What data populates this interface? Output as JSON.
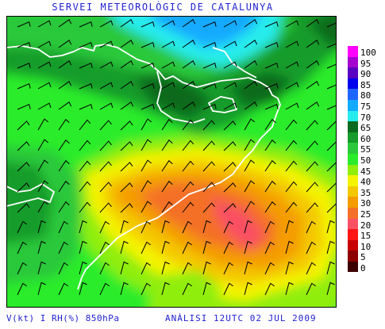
{
  "header": {
    "title": "SERVEI METEOROLÒGIC DE CATALUNYA"
  },
  "footer": {
    "variable": "V(kt) I RH(%) 850hPa",
    "analysis": "ANÀLISI 12UTC 02 JUL 2009"
  },
  "legend": {
    "items": [
      {
        "label": "100",
        "color": "#ff00ff"
      },
      {
        "label": "95",
        "color": "#a400d0"
      },
      {
        "label": "90",
        "color": "#5a00c0"
      },
      {
        "label": "85",
        "color": "#0000ee"
      },
      {
        "label": "80",
        "color": "#1e64ff"
      },
      {
        "label": "75",
        "color": "#12aaff"
      },
      {
        "label": "70",
        "color": "#28ecec"
      },
      {
        "label": "65",
        "color": "#0a6a1e"
      },
      {
        "label": "60",
        "color": "#159c2a"
      },
      {
        "label": "55",
        "color": "#2ac83a"
      },
      {
        "label": "50",
        "color": "#2aec2a"
      },
      {
        "label": "45",
        "color": "#90ee0a"
      },
      {
        "label": "40",
        "color": "#f4f400"
      },
      {
        "label": "35",
        "color": "#f4c800"
      },
      {
        "label": "30",
        "color": "#f49c00"
      },
      {
        "label": "25",
        "color": "#f47028"
      },
      {
        "label": "20",
        "color": "#fa5064"
      },
      {
        "label": "15",
        "color": "#ff1414"
      },
      {
        "label": "10",
        "color": "#c80000"
      },
      {
        "label": "5",
        "color": "#8c0000"
      },
      {
        "label": "0",
        "color": "#3c0000"
      }
    ]
  }
}
